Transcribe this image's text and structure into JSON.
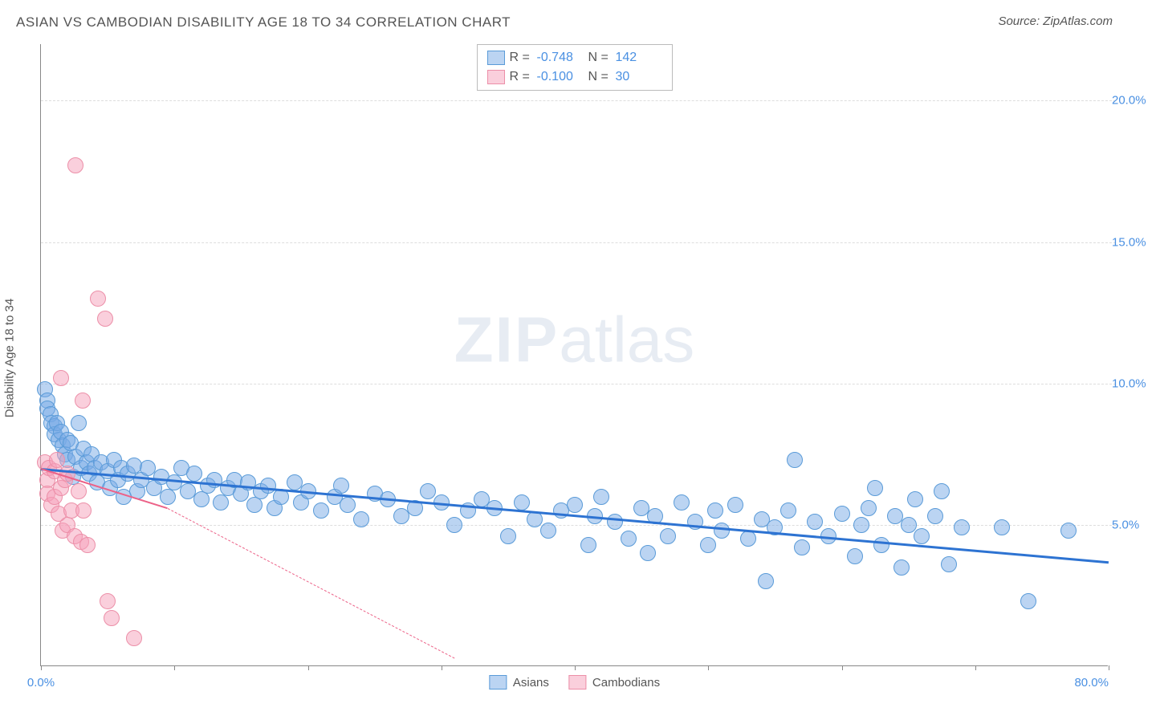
{
  "title": "ASIAN VS CAMBODIAN DISABILITY AGE 18 TO 34 CORRELATION CHART",
  "source": "Source: ZipAtlas.com",
  "ylabel": "Disability Age 18 to 34",
  "watermark_a": "ZIP",
  "watermark_b": "atlas",
  "chart": {
    "type": "scatter",
    "xlim": [
      0,
      80
    ],
    "ylim": [
      0,
      22
    ],
    "yticks": [
      5,
      10,
      15,
      20
    ],
    "ytick_labels": [
      "5.0%",
      "10.0%",
      "15.0%",
      "20.0%"
    ],
    "xticks": [
      0,
      10,
      20,
      30,
      40,
      50,
      60,
      70,
      80
    ],
    "xtick_labels": {
      "0": "0.0%",
      "80": "80.0%"
    },
    "grid_color": "#dddddd",
    "background_color": "#ffffff",
    "axis_color": "#888888",
    "tick_label_color": "#4a90e2",
    "marker_radius": 10,
    "series": [
      {
        "name": "Asians",
        "fill": "rgba(120, 170, 230, 0.5)",
        "stroke": "#5a9bd8",
        "r": -0.748,
        "n": 142,
        "trend": {
          "x1": 0,
          "y1": 7.0,
          "x2": 80,
          "y2": 3.7,
          "color": "#2d73d2",
          "width": 3,
          "dash": false
        },
        "points": [
          [
            0.3,
            9.8
          ],
          [
            0.5,
            9.4
          ],
          [
            0.5,
            9.1
          ],
          [
            0.7,
            8.9
          ],
          [
            0.8,
            8.6
          ],
          [
            1.0,
            8.5
          ],
          [
            1.0,
            8.2
          ],
          [
            1.2,
            8.6
          ],
          [
            1.3,
            8.0
          ],
          [
            1.5,
            8.3
          ],
          [
            1.6,
            7.8
          ],
          [
            1.8,
            7.5
          ],
          [
            2.0,
            8.0
          ],
          [
            2.0,
            7.3
          ],
          [
            2.2,
            7.9
          ],
          [
            2.4,
            6.7
          ],
          [
            2.6,
            7.4
          ],
          [
            2.8,
            8.6
          ],
          [
            3.0,
            7.0
          ],
          [
            3.2,
            7.7
          ],
          [
            3.4,
            7.2
          ],
          [
            3.6,
            6.8
          ],
          [
            3.8,
            7.5
          ],
          [
            4.0,
            7.0
          ],
          [
            4.2,
            6.5
          ],
          [
            4.5,
            7.2
          ],
          [
            5.0,
            6.9
          ],
          [
            5.2,
            6.3
          ],
          [
            5.5,
            7.3
          ],
          [
            5.8,
            6.6
          ],
          [
            6.0,
            7.0
          ],
          [
            6.2,
            6.0
          ],
          [
            6.5,
            6.8
          ],
          [
            7.0,
            7.1
          ],
          [
            7.2,
            6.2
          ],
          [
            7.5,
            6.6
          ],
          [
            8.0,
            7.0
          ],
          [
            8.5,
            6.3
          ],
          [
            9.0,
            6.7
          ],
          [
            9.5,
            6.0
          ],
          [
            10.0,
            6.5
          ],
          [
            10.5,
            7.0
          ],
          [
            11.0,
            6.2
          ],
          [
            11.5,
            6.8
          ],
          [
            12.0,
            5.9
          ],
          [
            12.5,
            6.4
          ],
          [
            13.0,
            6.6
          ],
          [
            13.5,
            5.8
          ],
          [
            14.0,
            6.3
          ],
          [
            14.5,
            6.6
          ],
          [
            15.0,
            6.1
          ],
          [
            15.5,
            6.5
          ],
          [
            16.0,
            5.7
          ],
          [
            16.5,
            6.2
          ],
          [
            17.0,
            6.4
          ],
          [
            17.5,
            5.6
          ],
          [
            18.0,
            6.0
          ],
          [
            19.0,
            6.5
          ],
          [
            19.5,
            5.8
          ],
          [
            20.0,
            6.2
          ],
          [
            21.0,
            5.5
          ],
          [
            22.0,
            6.0
          ],
          [
            22.5,
            6.4
          ],
          [
            23.0,
            5.7
          ],
          [
            24.0,
            5.2
          ],
          [
            25.0,
            6.1
          ],
          [
            26.0,
            5.9
          ],
          [
            27.0,
            5.3
          ],
          [
            28.0,
            5.6
          ],
          [
            29.0,
            6.2
          ],
          [
            30.0,
            5.8
          ],
          [
            31.0,
            5.0
          ],
          [
            32.0,
            5.5
          ],
          [
            33.0,
            5.9
          ],
          [
            34.0,
            5.6
          ],
          [
            35.0,
            4.6
          ],
          [
            36.0,
            5.8
          ],
          [
            37.0,
            5.2
          ],
          [
            38.0,
            4.8
          ],
          [
            39.0,
            5.5
          ],
          [
            40.0,
            5.7
          ],
          [
            41.0,
            4.3
          ],
          [
            41.5,
            5.3
          ],
          [
            42.0,
            6.0
          ],
          [
            43.0,
            5.1
          ],
          [
            44.0,
            4.5
          ],
          [
            45.0,
            5.6
          ],
          [
            45.5,
            4.0
          ],
          [
            46.0,
            5.3
          ],
          [
            47.0,
            4.6
          ],
          [
            48.0,
            5.8
          ],
          [
            49.0,
            5.1
          ],
          [
            50.0,
            4.3
          ],
          [
            50.5,
            5.5
          ],
          [
            51.0,
            4.8
          ],
          [
            52.0,
            5.7
          ],
          [
            53.0,
            4.5
          ],
          [
            54.0,
            5.2
          ],
          [
            54.3,
            3.0
          ],
          [
            55.0,
            4.9
          ],
          [
            56.0,
            5.5
          ],
          [
            56.5,
            7.3
          ],
          [
            57.0,
            4.2
          ],
          [
            58.0,
            5.1
          ],
          [
            59.0,
            4.6
          ],
          [
            60.0,
            5.4
          ],
          [
            61.0,
            3.9
          ],
          [
            61.5,
            5.0
          ],
          [
            62.0,
            5.6
          ],
          [
            62.5,
            6.3
          ],
          [
            63.0,
            4.3
          ],
          [
            64.0,
            5.3
          ],
          [
            64.5,
            3.5
          ],
          [
            65.0,
            5.0
          ],
          [
            65.5,
            5.9
          ],
          [
            66.0,
            4.6
          ],
          [
            67.0,
            5.3
          ],
          [
            67.5,
            6.2
          ],
          [
            68.0,
            3.6
          ],
          [
            69.0,
            4.9
          ],
          [
            72.0,
            4.9
          ],
          [
            74.0,
            2.3
          ],
          [
            77.0,
            4.8
          ]
        ]
      },
      {
        "name": "Cambodians",
        "fill": "rgba(245, 160, 185, 0.5)",
        "stroke": "#ec8fa8",
        "r": -0.1,
        "n": 30,
        "trend_solid": {
          "x1": 0,
          "y1": 7.0,
          "x2": 9.5,
          "y2": 5.6,
          "color": "#ec6288",
          "width": 2.5,
          "dash": false
        },
        "trend_dash": {
          "x1": 9.5,
          "y1": 5.6,
          "x2": 31,
          "y2": 0.3,
          "color": "#ec6288",
          "width": 1,
          "dash": true
        },
        "points": [
          [
            0.3,
            7.2
          ],
          [
            0.5,
            6.6
          ],
          [
            0.5,
            6.1
          ],
          [
            0.6,
            7.0
          ],
          [
            0.8,
            5.7
          ],
          [
            1.0,
            6.9
          ],
          [
            1.0,
            6.0
          ],
          [
            1.2,
            7.3
          ],
          [
            1.3,
            5.4
          ],
          [
            1.5,
            6.3
          ],
          [
            1.5,
            10.2
          ],
          [
            1.6,
            4.8
          ],
          [
            1.8,
            6.6
          ],
          [
            2.0,
            5.0
          ],
          [
            2.0,
            6.8
          ],
          [
            2.3,
            5.5
          ],
          [
            2.5,
            4.6
          ],
          [
            2.6,
            17.7
          ],
          [
            2.8,
            6.2
          ],
          [
            3.0,
            4.4
          ],
          [
            3.1,
            9.4
          ],
          [
            3.2,
            5.5
          ],
          [
            3.5,
            4.3
          ],
          [
            4.3,
            13.0
          ],
          [
            4.8,
            12.3
          ],
          [
            5.0,
            2.3
          ],
          [
            5.3,
            1.7
          ],
          [
            7.0,
            1.0
          ]
        ]
      }
    ]
  },
  "legend_top": [
    {
      "swatch_fill": "rgba(120,170,230,0.5)",
      "swatch_stroke": "#5a9bd8",
      "r_lbl": "R =",
      "r_val": "-0.748",
      "n_lbl": "N =",
      "n_val": "142"
    },
    {
      "swatch_fill": "rgba(245,160,185,0.5)",
      "swatch_stroke": "#ec8fa8",
      "r_lbl": "R =",
      "r_val": "-0.100",
      "n_lbl": "N =",
      "n_val": " 30"
    }
  ],
  "legend_bottom": [
    {
      "swatch_fill": "rgba(120,170,230,0.5)",
      "swatch_stroke": "#5a9bd8",
      "label": "Asians"
    },
    {
      "swatch_fill": "rgba(245,160,185,0.5)",
      "swatch_stroke": "#ec8fa8",
      "label": "Cambodians"
    }
  ]
}
